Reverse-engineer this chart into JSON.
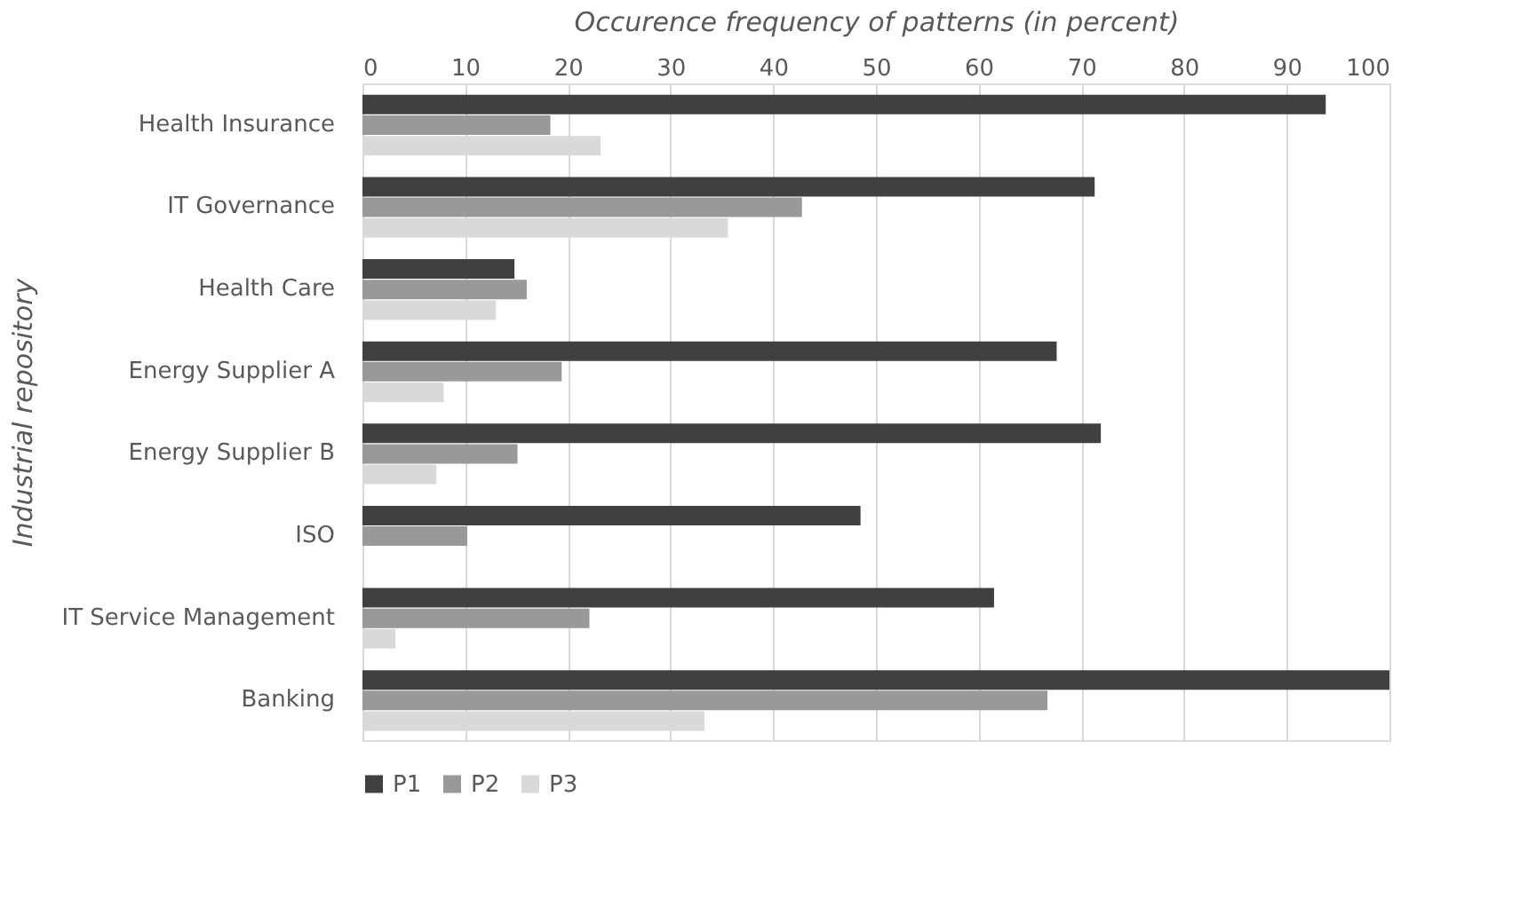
{
  "chart_data": {
    "type": "bar",
    "orientation": "horizontal",
    "xlabel": "Occurence frequency of patterns (in percent)",
    "ylabel": "Industrial repository",
    "categories": [
      "Health Insurance",
      "IT  Governance",
      "Health Care",
      "Energy Supplier A",
      "Energy Supplier B",
      "ISO",
      "IT Service Management",
      "Banking"
    ],
    "series": [
      {
        "name": "P1",
        "color": "#404040",
        "values": [
          93.8,
          71.3,
          14.8,
          67.6,
          71.9,
          48.5,
          61.5,
          100
        ]
      },
      {
        "name": "P2",
        "color": "#999999",
        "values": [
          18.3,
          42.8,
          16.0,
          19.4,
          15.1,
          10.2,
          22.1,
          66.7
        ]
      },
      {
        "name": "P3",
        "color": "#d9d9d9",
        "values": [
          23.2,
          35.6,
          13.0,
          7.9,
          7.2,
          0,
          3.2,
          33.3
        ]
      }
    ],
    "xlim": [
      0,
      100
    ],
    "xticks": [
      0,
      10,
      20,
      30,
      40,
      50,
      60,
      70,
      80,
      90,
      100
    ],
    "grid": "x",
    "legend": "bottom"
  }
}
